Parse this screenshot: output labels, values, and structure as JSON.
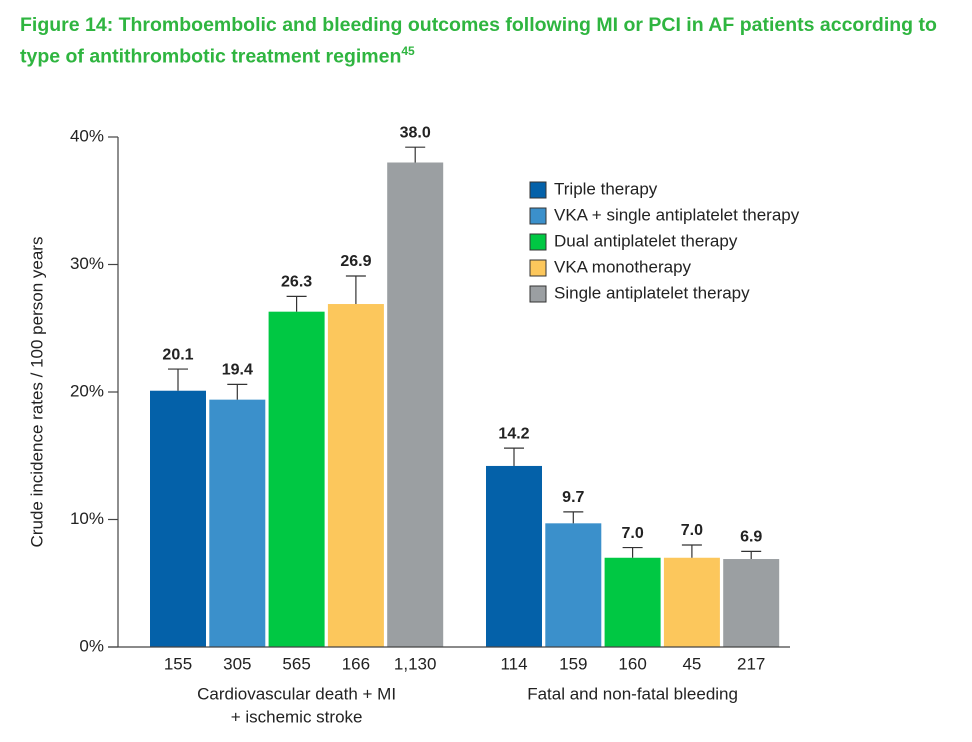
{
  "chart_data": {
    "type": "bar",
    "title": "Figure 14: Thromboembolic and bleeding outcomes following MI or PCI in AF patients according to type of antithrombotic treatment regimen",
    "title_ref": "45",
    "y_label": "Crude incidence rates / 100 person years",
    "categories": [
      [
        "Cardiovascular death + MI",
        "+ ischemic stroke"
      ],
      [
        "Fatal and non-fatal bleeding"
      ]
    ],
    "ylim": [
      0,
      40
    ],
    "yticks": [
      {
        "value": 0,
        "label": "0%"
      },
      {
        "value": 10,
        "label": "10%"
      },
      {
        "value": 20,
        "label": "20%"
      },
      {
        "value": 30,
        "label": "30%"
      },
      {
        "value": 40,
        "label": "40%"
      }
    ],
    "legend": "upper right",
    "series": [
      {
        "name": "Triple therapy",
        "color": "#0461a9",
        "values": [
          20.1,
          14.2
        ],
        "value_labels": [
          "20.1",
          "14.2"
        ],
        "errors": [
          1.7,
          1.4
        ],
        "n_labels": [
          "155",
          "114"
        ]
      },
      {
        "name": "VKA + single antiplatelet therapy",
        "color": "#3b90cb",
        "values": [
          19.4,
          9.7
        ],
        "value_labels": [
          "19.4",
          "9.7"
        ],
        "errors": [
          1.2,
          0.9
        ],
        "n_labels": [
          "305",
          "159"
        ]
      },
      {
        "name": "Dual antiplatelet therapy",
        "color": "#00c843",
        "values": [
          26.3,
          7.0
        ],
        "value_labels": [
          "26.3",
          "7.0"
        ],
        "errors": [
          1.2,
          0.8
        ],
        "n_labels": [
          "565",
          "160"
        ]
      },
      {
        "name": "VKA monotherapy",
        "color": "#fcc75c",
        "values": [
          26.9,
          7.0
        ],
        "value_labels": [
          "26.9",
          "7.0"
        ],
        "errors": [
          2.2,
          1.0
        ],
        "n_labels": [
          "166",
          "45"
        ]
      },
      {
        "name": "Single antiplatelet therapy",
        "color": "#9b9fa2",
        "values": [
          38.0,
          6.9
        ],
        "value_labels": [
          "38.0",
          "6.9"
        ],
        "errors": [
          1.2,
          0.6
        ],
        "n_labels": [
          "1,130",
          "217"
        ]
      }
    ]
  }
}
